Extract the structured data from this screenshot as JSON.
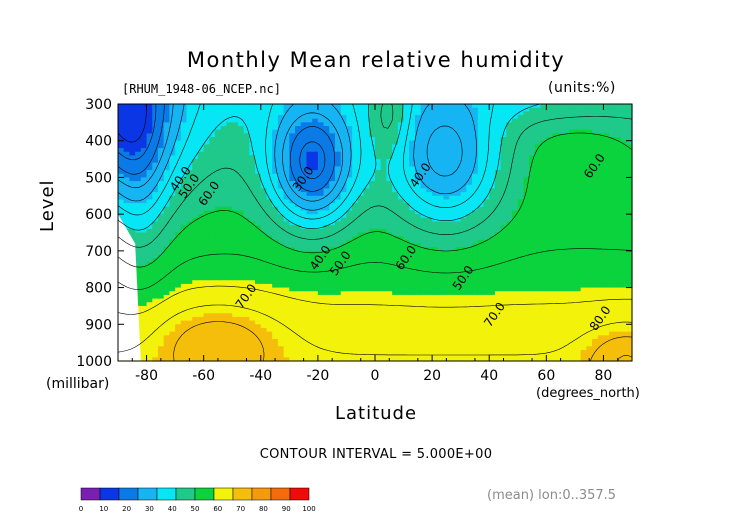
{
  "title": "Monthly Mean relative humidity",
  "file_label": "[RHUM_1948-06_NCEP.nc]",
  "units_label": "(units:%)",
  "y_axis_label": "Level",
  "y_unit_label": "(millibar)",
  "x_axis_label": "Latitude",
  "x_unit_label": "(degrees_north)",
  "contour_interval_label": "CONTOUR INTERVAL = 5.000E+00",
  "mean_label": "(mean) lon:0..357.5",
  "colors": {
    "purple": "#7a1fb4",
    "blue": "#0a36e6",
    "med_blue": "#0a7ae6",
    "light_blue": "#17b4f3",
    "cyan": "#06e6f5",
    "teal": "#1ec98a",
    "green": "#0ad33d",
    "yellow": "#f2f20a",
    "gold": "#f5be0a",
    "orange": "#f59a0a",
    "dark_orange": "#f56a0a",
    "red": "#f00a0a"
  },
  "chart_data": {
    "type": "contour",
    "title": "Monthly Mean relative humidity",
    "xlabel": "Latitude",
    "ylabel": "Level",
    "x_units": "degrees_north",
    "y_units": "millibar",
    "xlim": [
      -90,
      90
    ],
    "ylim": [
      1000,
      300
    ],
    "x_ticks": [
      -80,
      -60,
      -40,
      -20,
      0,
      20,
      40,
      60,
      80
    ],
    "x_tick_labels": [
      "-80",
      "-60",
      "-40",
      "-20",
      "0",
      "20",
      "40",
      "60",
      "80"
    ],
    "y_ticks": [
      300,
      400,
      500,
      600,
      700,
      800,
      900,
      1000
    ],
    "y_tick_labels": [
      "300",
      "400",
      "500",
      "600",
      "700",
      "800",
      "900",
      "1000"
    ],
    "contour_interval": 5,
    "colorbar": {
      "levels": [
        0,
        10,
        20,
        30,
        40,
        50,
        60,
        70,
        80,
        90,
        100
      ],
      "labels": [
        "0",
        "10",
        "20",
        "30",
        "40",
        "50",
        "60",
        "70",
        "80",
        "90",
        "100"
      ],
      "colors": [
        "#7a1fb4",
        "#0a36e6",
        "#0a7ae6",
        "#17b4f3",
        "#06e6f5",
        "#1ec98a",
        "#0ad33d",
        "#f2f20a",
        "#f5be0a",
        "#f59a0a",
        "#f56a0a",
        "#f00a0a"
      ]
    },
    "contour_labels": [
      {
        "text": "40.0",
        "lat": -67,
        "lev": 510
      },
      {
        "text": "50.0",
        "lat": -64,
        "lev": 530
      },
      {
        "text": "60.0",
        "lat": -57,
        "lev": 550
      },
      {
        "text": "30.0",
        "lat": -24,
        "lev": 510
      },
      {
        "text": "40.0",
        "lat": -18,
        "lev": 725
      },
      {
        "text": "50.0",
        "lat": -11,
        "lev": 740
      },
      {
        "text": "40.0",
        "lat": 17,
        "lev": 500
      },
      {
        "text": "60.0",
        "lat": 12,
        "lev": 725
      },
      {
        "text": "50.0",
        "lat": 32,
        "lev": 780
      },
      {
        "text": "70.0",
        "lat": -44,
        "lev": 830
      },
      {
        "text": "70.0",
        "lat": 43,
        "lev": 880
      },
      {
        "text": "60.0",
        "lat": 78,
        "lev": 475
      },
      {
        "text": "80.0",
        "lat": 80,
        "lev": 890
      }
    ],
    "field_features": [
      {
        "name": "dry minimum",
        "lat": -22,
        "lev": 440,
        "value": 25
      },
      {
        "name": "dry minimum",
        "lat": 25,
        "lev": 430,
        "value": 40
      },
      {
        "name": "moist maximum",
        "lat": 5,
        "lev": 320,
        "value": 55
      },
      {
        "name": "moist maximum",
        "lat": -55,
        "lev": 940,
        "value": 92
      },
      {
        "name": "moist maximum",
        "lat": 85,
        "lev": 980,
        "value": 92
      },
      {
        "name": "dry corner",
        "lat": -90,
        "lev": 300,
        "value": 5
      }
    ]
  }
}
